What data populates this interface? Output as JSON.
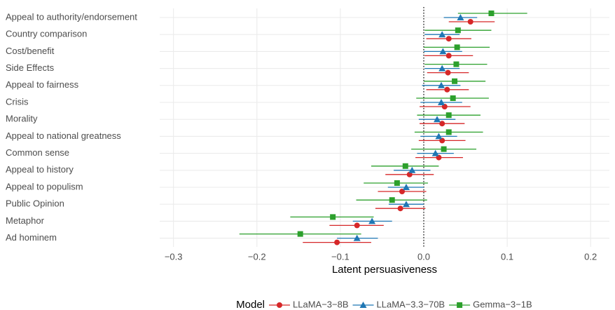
{
  "chart_data": {
    "type": "dot-whisker",
    "x_label": "Latent persuasiveness",
    "legend_title": "Model",
    "categories": [
      "Appeal to authority/endorsement",
      "Country comparison",
      "Cost/benefit",
      "Side Effects",
      "Appeal to fairness",
      "Crisis",
      "Morality",
      "Appeal to national greatness",
      "Common sense",
      "Appeal to history",
      "Appeal to populism",
      "Public Opinion",
      "Metaphor",
      "Ad hominem"
    ],
    "series": [
      {
        "name": "LLaMA−3−8B",
        "color": "#d62728",
        "marker": "circle",
        "values": [
          0.056,
          0.03,
          0.03,
          0.029,
          0.028,
          0.025,
          0.022,
          0.022,
          0.018,
          -0.017,
          -0.026,
          -0.028,
          -0.08,
          -0.104
        ],
        "lo": [
          0.03,
          0.003,
          0.001,
          0.004,
          0.003,
          -0.005,
          -0.005,
          -0.006,
          -0.01,
          -0.046,
          -0.055,
          -0.058,
          -0.113,
          -0.145
        ],
        "hi": [
          0.085,
          0.057,
          0.059,
          0.054,
          0.054,
          0.056,
          0.049,
          0.05,
          0.047,
          0.012,
          0.003,
          0.002,
          -0.048,
          -0.063
        ]
      },
      {
        "name": "LLaMA−3.3−70B",
        "color": "#1f77b4",
        "marker": "triangle",
        "values": [
          0.044,
          0.022,
          0.023,
          0.022,
          0.021,
          0.021,
          0.016,
          0.018,
          0.014,
          -0.014,
          -0.021,
          -0.021,
          -0.062,
          -0.08
        ],
        "lo": [
          0.024,
          0.001,
          0.0,
          0.001,
          -0.002,
          -0.004,
          -0.006,
          -0.004,
          -0.008,
          -0.036,
          -0.043,
          -0.042,
          -0.085,
          -0.104
        ],
        "hi": [
          0.064,
          0.043,
          0.046,
          0.043,
          0.044,
          0.046,
          0.038,
          0.04,
          0.036,
          0.008,
          0.0,
          0.0,
          -0.038,
          -0.055
        ]
      },
      {
        "name": "Gemma−3−1B",
        "color": "#2ca02c",
        "marker": "square",
        "values": [
          0.081,
          0.041,
          0.04,
          0.039,
          0.037,
          0.035,
          0.03,
          0.03,
          0.024,
          -0.022,
          -0.032,
          -0.038,
          -0.109,
          -0.148
        ],
        "lo": [
          0.041,
          0.001,
          0.0,
          0.001,
          0.0,
          -0.009,
          -0.008,
          -0.011,
          -0.015,
          -0.063,
          -0.072,
          -0.081,
          -0.16,
          -0.221
        ],
        "hi": [
          0.124,
          0.081,
          0.079,
          0.076,
          0.074,
          0.078,
          0.068,
          0.071,
          0.063,
          0.018,
          0.005,
          0.004,
          -0.06,
          -0.075
        ]
      }
    ],
    "xlim": [
      -0.3165,
      0.2225
    ],
    "xticks": [
      {
        "value": -0.3,
        "label": "−0.3"
      },
      {
        "value": -0.2,
        "label": "−0.2"
      },
      {
        "value": -0.1,
        "label": "−0.1"
      },
      {
        "value": 0,
        "label": "0.0"
      },
      0.1,
      0.2
    ],
    "grid": true
  }
}
